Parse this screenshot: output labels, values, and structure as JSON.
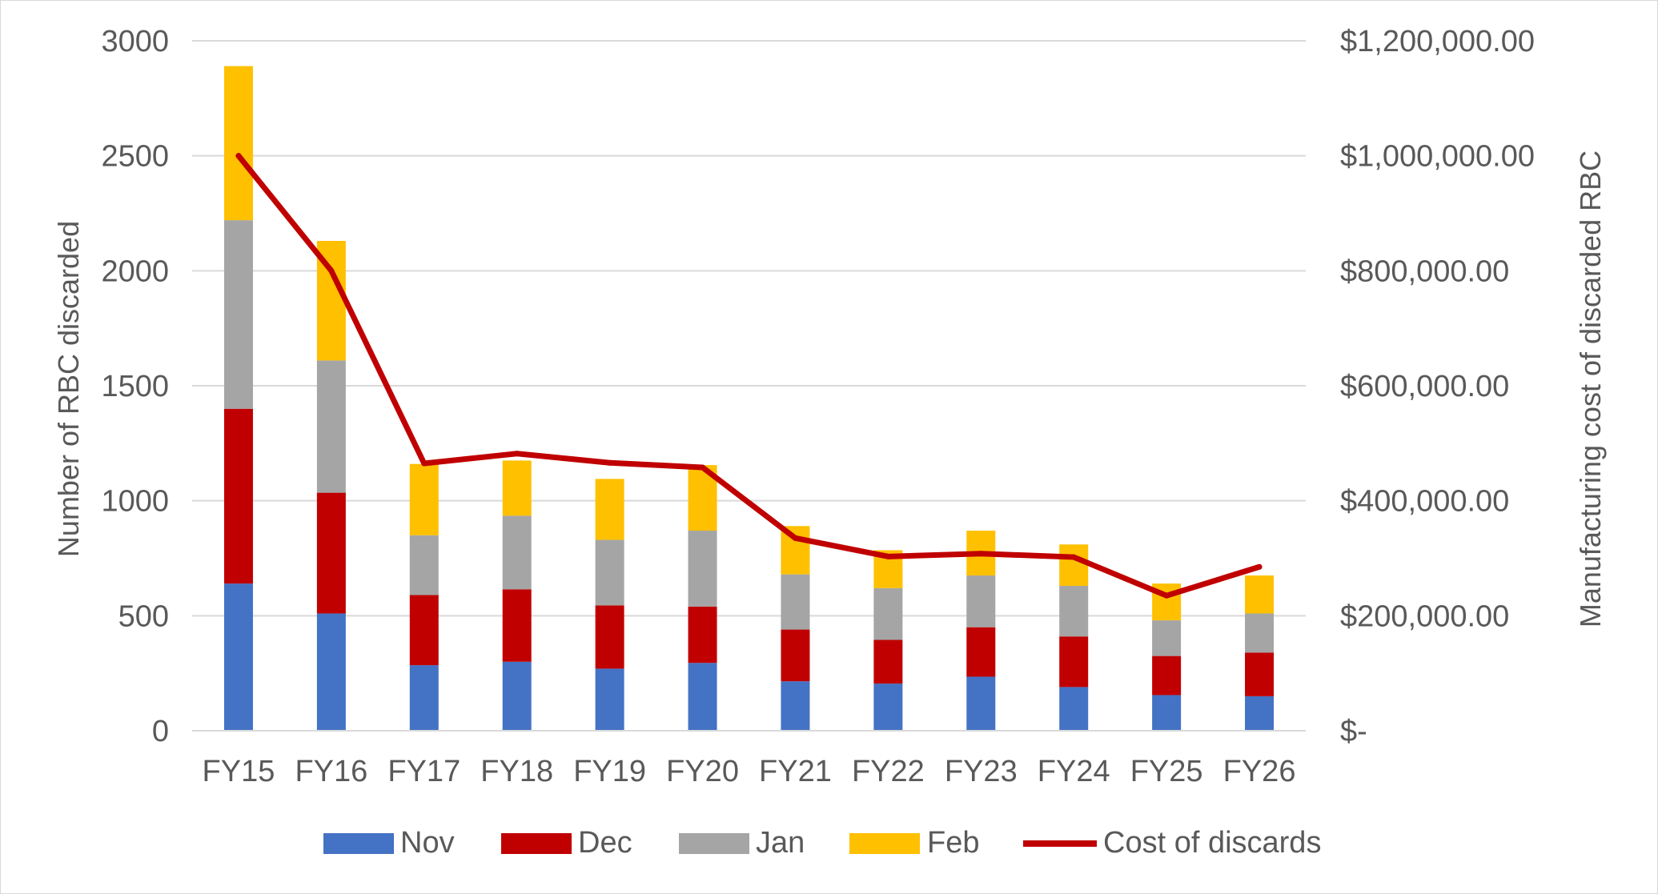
{
  "chart_data": {
    "type": "bar",
    "stacked": true,
    "categories": [
      "FY15",
      "FY16",
      "FY17",
      "FY18",
      "FY19",
      "FY20",
      "FY21",
      "FY22",
      "FY23",
      "FY24",
      "FY25",
      "FY26"
    ],
    "series": [
      {
        "name": "Nov",
        "color": "#4472c4",
        "values": [
          640,
          510,
          285,
          300,
          270,
          295,
          215,
          205,
          235,
          190,
          155,
          150
        ]
      },
      {
        "name": "Dec",
        "color": "#c00000",
        "values": [
          760,
          525,
          305,
          315,
          275,
          245,
          225,
          190,
          215,
          220,
          170,
          190
        ]
      },
      {
        "name": "Jan",
        "color": "#a5a5a5",
        "values": [
          820,
          575,
          260,
          320,
          285,
          330,
          240,
          225,
          225,
          220,
          155,
          170
        ]
      },
      {
        "name": "Feb",
        "color": "#ffc000",
        "values": [
          670,
          520,
          310,
          240,
          265,
          285,
          210,
          165,
          195,
          180,
          160,
          165
        ]
      }
    ],
    "line_series": {
      "name": "Cost of discards",
      "color": "#c00000",
      "axis": "right",
      "values": [
        1000000,
        800000,
        465000,
        482000,
        466000,
        458000,
        335000,
        303000,
        308000,
        302000,
        235000,
        285000
      ]
    },
    "ylabel": "Number of RBC discarded",
    "ylim": [
      0,
      3000
    ],
    "yticks": [
      0,
      500,
      1000,
      1500,
      2000,
      2500,
      3000
    ],
    "y2label": "Manufacturing cost of discarded RBC",
    "y2lim": [
      0,
      1200000
    ],
    "y2ticks": [
      "$-",
      "$200,000.00",
      "$400,000.00",
      "$600,000.00",
      "$800,000.00",
      "$1,000,000.00",
      "$1,200,000.00"
    ],
    "grid": true,
    "legend": "bottom",
    "gridline_color": "#d9d9d9"
  }
}
